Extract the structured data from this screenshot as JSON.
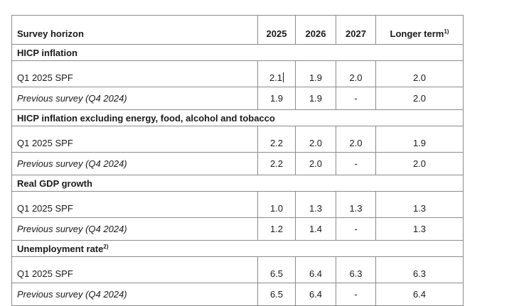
{
  "table": {
    "header": {
      "label": "Survey horizon",
      "years": [
        "2025",
        "2026",
        "2027"
      ],
      "longer_term": "Longer term",
      "longer_term_note": "1)"
    },
    "sections": [
      {
        "title": "HICP inflation",
        "note": "",
        "rows": [
          {
            "label": "Q1 2025 SPF",
            "italic": false,
            "values": [
              "2.1",
              "1.9",
              "2.0",
              "2.0"
            ]
          },
          {
            "label": "Previous survey (Q4 2024)",
            "italic": true,
            "values": [
              "1.9",
              "1.9",
              "-",
              "2.0"
            ]
          }
        ]
      },
      {
        "title": "HICP inflation excluding energy, food, alcohol and tobacco",
        "note": "",
        "rows": [
          {
            "label": "Q1 2025 SPF",
            "italic": false,
            "values": [
              "2.2",
              "2.0",
              "2.0",
              "1.9"
            ]
          },
          {
            "label": "Previous survey (Q4 2024)",
            "italic": true,
            "values": [
              "2.2",
              "2.0",
              "-",
              "2.0"
            ]
          }
        ]
      },
      {
        "title": "Real GDP growth",
        "note": "",
        "rows": [
          {
            "label": "Q1 2025 SPF",
            "italic": false,
            "values": [
              "1.0",
              "1.3",
              "1.3",
              "1.3"
            ]
          },
          {
            "label": "Previous survey (Q4 2024)",
            "italic": true,
            "values": [
              "1.2",
              "1.4",
              "-",
              "1.3"
            ]
          }
        ]
      },
      {
        "title": "Unemployment rate",
        "note": "2)",
        "rows": [
          {
            "label": "Q1 2025 SPF",
            "italic": false,
            "values": [
              "6.5",
              "6.4",
              "6.3",
              "6.3"
            ]
          },
          {
            "label": "Previous survey (Q4 2024)",
            "italic": true,
            "values": [
              "6.5",
              "6.4",
              "-",
              "6.4"
            ]
          }
        ]
      }
    ]
  }
}
